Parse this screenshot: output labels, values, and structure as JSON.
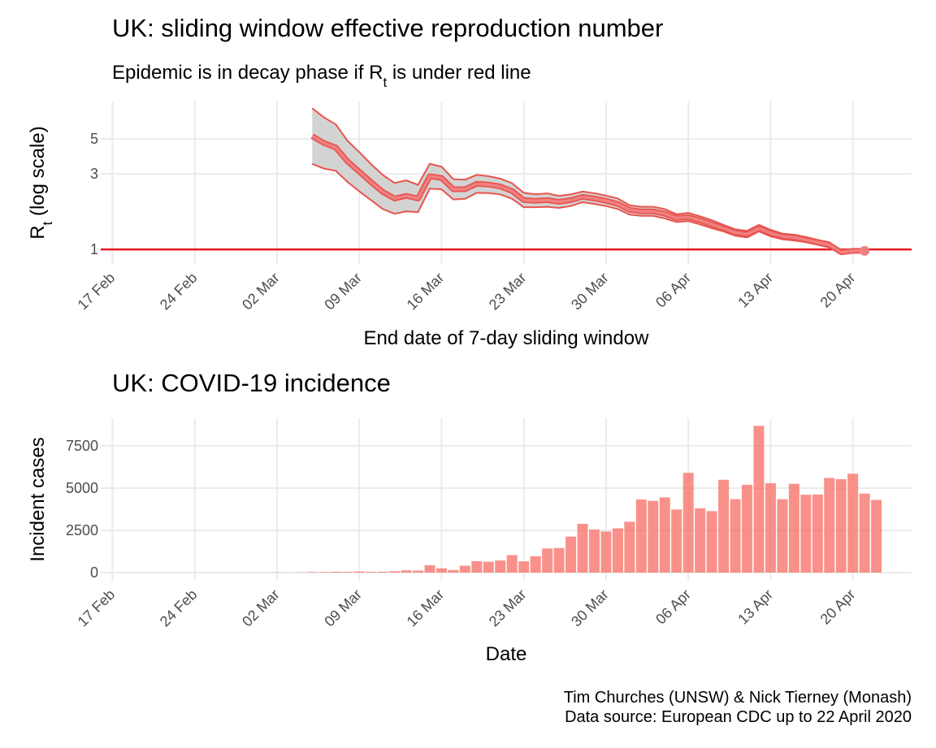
{
  "chart_data": [
    {
      "type": "line",
      "title": "UK: sliding window effective reproduction number",
      "subtitle": [
        "Epidemic is in decay phase if R",
        "t",
        "  is under red line"
      ],
      "xlabel": "End date of 7-day sliding window",
      "ylabel": [
        "R",
        "t",
        " (log scale)"
      ],
      "x": [
        "05 Mar",
        "06 Mar",
        "07 Mar",
        "08 Mar",
        "09 Mar",
        "10 Mar",
        "11 Mar",
        "12 Mar",
        "13 Mar",
        "14 Mar",
        "15 Mar",
        "16 Mar",
        "17 Mar",
        "18 Mar",
        "19 Mar",
        "20 Mar",
        "21 Mar",
        "22 Mar",
        "23 Mar",
        "24 Mar",
        "25 Mar",
        "26 Mar",
        "27 Mar",
        "28 Mar",
        "29 Mar",
        "30 Mar",
        "31 Mar",
        "01 Apr",
        "02 Apr",
        "03 Apr",
        "04 Apr",
        "05 Apr",
        "06 Apr",
        "07 Apr",
        "08 Apr",
        "09 Apr",
        "10 Apr",
        "11 Apr",
        "12 Apr",
        "13 Apr",
        "14 Apr",
        "15 Apr",
        "16 Apr",
        "17 Apr",
        "18 Apr",
        "19 Apr",
        "20 Apr",
        "21 Apr"
      ],
      "values": [
        5.2,
        4.7,
        4.4,
        3.6,
        3.1,
        2.66,
        2.31,
        2.1,
        2.18,
        2.1,
        2.9,
        2.83,
        2.4,
        2.4,
        2.6,
        2.57,
        2.5,
        2.34,
        2.05,
        2.03,
        2.05,
        2.0,
        2.05,
        2.15,
        2.1,
        2.03,
        1.94,
        1.78,
        1.74,
        1.74,
        1.68,
        1.58,
        1.6,
        1.53,
        1.44,
        1.36,
        1.28,
        1.25,
        1.36,
        1.27,
        1.21,
        1.19,
        1.15,
        1.11,
        1.07,
        0.96,
        0.98,
        0.98
      ],
      "upper": [
        7.8,
        6.82,
        6.16,
        4.86,
        4.12,
        3.46,
        2.96,
        2.63,
        2.73,
        2.56,
        3.48,
        3.34,
        2.78,
        2.76,
        2.96,
        2.9,
        2.8,
        2.62,
        2.28,
        2.23,
        2.26,
        2.18,
        2.23,
        2.32,
        2.27,
        2.19,
        2.1,
        1.9,
        1.86,
        1.86,
        1.8,
        1.67,
        1.7,
        1.62,
        1.53,
        1.43,
        1.34,
        1.31,
        1.43,
        1.33,
        1.26,
        1.24,
        1.2,
        1.15,
        1.11,
        0.98,
        1.0,
        1.0
      ],
      "lower": [
        3.47,
        3.24,
        3.14,
        2.67,
        2.33,
        2.05,
        1.8,
        1.68,
        1.74,
        1.72,
        2.42,
        2.4,
        2.07,
        2.09,
        2.28,
        2.27,
        2.23,
        2.09,
        1.85,
        1.85,
        1.86,
        1.83,
        1.88,
        1.99,
        1.94,
        1.88,
        1.8,
        1.66,
        1.63,
        1.63,
        1.57,
        1.49,
        1.51,
        1.44,
        1.36,
        1.3,
        1.22,
        1.19,
        1.3,
        1.21,
        1.16,
        1.14,
        1.11,
        1.07,
        1.03,
        0.94,
        0.96,
        0.96
      ],
      "color": "#f08080",
      "edge_color": "#e8544e",
      "band_color": "#d3d3d3",
      "threshold": 1,
      "threshold_color": "#e41a1c",
      "log_scale": true,
      "grid": true,
      "xlim": [
        "16 Feb",
        "25 Apr"
      ],
      "xticks": [
        "17 Feb",
        "24 Feb",
        "02 Mar",
        "09 Mar",
        "16 Mar",
        "23 Mar",
        "30 Mar",
        "06 Apr",
        "13 Apr",
        "20 Apr"
      ],
      "ylim": [
        0.81,
        8.6
      ],
      "yticks": [
        1,
        3,
        5
      ]
    },
    {
      "type": "bar",
      "title": "UK: COVID-19 incidence",
      "xlabel": "Date",
      "ylabel": "Incident cases",
      "x": [
        "02 Mar",
        "03 Mar",
        "04 Mar",
        "05 Mar",
        "06 Mar",
        "07 Mar",
        "08 Mar",
        "09 Mar",
        "10 Mar",
        "11 Mar",
        "12 Mar",
        "13 Mar",
        "14 Mar",
        "15 Mar",
        "16 Mar",
        "17 Mar",
        "18 Mar",
        "19 Mar",
        "20 Mar",
        "21 Mar",
        "22 Mar",
        "23 Mar",
        "24 Mar",
        "25 Mar",
        "26 Mar",
        "27 Mar",
        "28 Mar",
        "29 Mar",
        "30 Mar",
        "31 Mar",
        "01 Apr",
        "02 Apr",
        "03 Apr",
        "04 Apr",
        "05 Apr",
        "06 Apr",
        "07 Apr",
        "08 Apr",
        "09 Apr",
        "10 Apr",
        "11 Apr",
        "12 Apr",
        "13 Apr",
        "14 Apr",
        "15 Apr",
        "16 Apr",
        "17 Apr",
        "18 Apr",
        "19 Apr",
        "20 Apr",
        "21 Apr",
        "22 Apr"
      ],
      "values": [
        13,
        4,
        11,
        34,
        29,
        48,
        43,
        67,
        48,
        52,
        83,
        134,
        117,
        433,
        251,
        152,
        407,
        676,
        643,
        714,
        1035,
        665,
        967,
        1427,
        1452,
        2129,
        2885,
        2546,
        2433,
        2619,
        3009,
        4324,
        4244,
        4450,
        3735,
        5903,
        3802,
        3634,
        5491,
        4344,
        5195,
        8681,
        5288,
        4342,
        5252,
        4603,
        4617,
        5599,
        5525,
        5850,
        4676,
        4301
      ],
      "color": "#f8766d",
      "grid": true,
      "xlim": [
        "16 Feb",
        "25 Apr"
      ],
      "xticks": [
        "17 Feb",
        "24 Feb",
        "02 Mar",
        "09 Mar",
        "16 Mar",
        "23 Mar",
        "30 Mar",
        "06 Apr",
        "13 Apr",
        "20 Apr"
      ],
      "ylim": [
        -480,
        9130
      ],
      "yticks": [
        0,
        2500,
        5000,
        7500
      ]
    }
  ],
  "caption": [
    "Tim Churches (UNSW) & Nick Tierney (Monash)",
    "Data source: European CDC up to 22 April 2020"
  ]
}
